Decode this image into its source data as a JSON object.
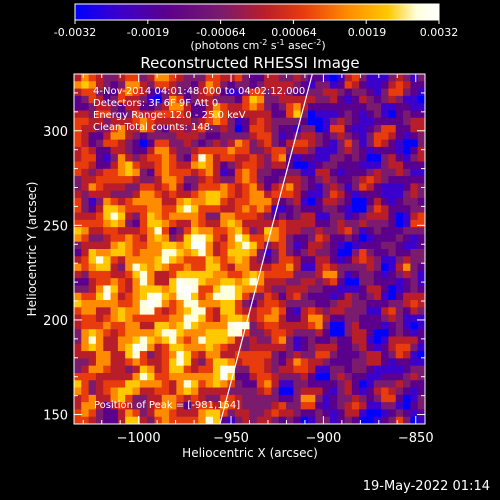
{
  "chart_data": {
    "type": "heatmap",
    "title": "Reconstructed RHESSI Image",
    "xlabel": "Heliocentric X (arcsec)",
    "ylabel": "Heliocentric Y (arcsec)",
    "xlim": [
      -1035,
      -845
    ],
    "ylim": [
      145,
      330
    ],
    "xticks": [
      -1000,
      -950,
      -900,
      -850
    ],
    "yticks": [
      150,
      200,
      250,
      300
    ],
    "colorbar": {
      "ticks": [
        "-0.0032",
        "-0.0019",
        "-0.00064",
        "0.00064",
        "0.0019",
        "0.0032"
      ],
      "unit_label": "(photons cm",
      "unit_exp1": "-2",
      "unit_mid": " s",
      "unit_exp2": "-1",
      "unit_end": " asec",
      "unit_exp3": "-2",
      "unit_close": ")",
      "range": [
        -0.0032,
        0.0032
      ],
      "colors": [
        "#0000ff",
        "#3b00cc",
        "#5a008c",
        "#7a1b6e",
        "#b81e2a",
        "#e83c0c",
        "#ff8c00",
        "#ffc800",
        "#ffffe0",
        "#ffffff"
      ]
    },
    "annotations": [
      "4-Nov-2014 04:01:48.000 to 04:02:12.000",
      "Detectors: 3F 6F 9F Att 0",
      "Energy Range: 12.0 - 25.0 keV",
      "Clean     Total counts: 148."
    ],
    "position_text": "Position of Peak = [-981,154]",
    "limb_line": {
      "x1": -956,
      "y1": 145,
      "x2": -906,
      "y2": 330
    }
  },
  "footer": {
    "date": "19-May-2022 01:14"
  }
}
